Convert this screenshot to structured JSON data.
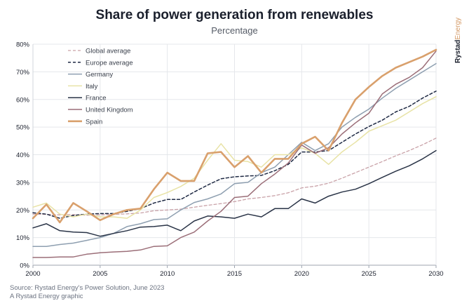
{
  "title": "Share of power generation from renewables",
  "subtitle": "Percentage",
  "source_lines": [
    "Source: Rystad Energy's Power Solution, June 2023",
    "A Rystad Energy graphic"
  ],
  "brand": {
    "part1": "Rystad",
    "part2": "Energy"
  },
  "chart_data": {
    "type": "line",
    "x_ticks": [
      2000,
      2005,
      2010,
      2015,
      2020,
      2025,
      2030
    ],
    "xlim": [
      2000,
      2030
    ],
    "ylim": [
      0,
      80
    ],
    "y_ticks": [
      0,
      10,
      20,
      30,
      40,
      50,
      60,
      70,
      80
    ],
    "y_tick_labels": [
      "0%",
      "10%",
      "20%",
      "30%",
      "40%",
      "50%",
      "60%",
      "70%",
      "80%"
    ],
    "grid": true,
    "legend_position": "top-left",
    "series": [
      {
        "name": "Global average",
        "color": "#c9a2a8",
        "dash": "dashed",
        "width": 1.3,
        "x": [
          2000,
          2001,
          2002,
          2003,
          2004,
          2005,
          2006,
          2007,
          2008,
          2009,
          2010,
          2011,
          2012,
          2013,
          2014,
          2015,
          2016,
          2017,
          2018,
          2019,
          2020,
          2021,
          2022,
          2023,
          2024,
          2025,
          2026,
          2027,
          2028,
          2029,
          2030
        ],
        "y": [
          18.5,
          18.4,
          18.2,
          18.3,
          18.1,
          18.2,
          18.4,
          18.6,
          18.9,
          19.7,
          20.0,
          20.3,
          21.0,
          21.7,
          22.3,
          23.0,
          24.0,
          24.5,
          25.2,
          26.2,
          28.0,
          28.6,
          29.7,
          31.5,
          33.5,
          35.5,
          37.5,
          39.6,
          41.5,
          43.6,
          46.0
        ]
      },
      {
        "name": "Europe average",
        "color": "#1f2a44",
        "dash": "dashed",
        "width": 1.5,
        "x": [
          2000,
          2001,
          2002,
          2003,
          2004,
          2005,
          2006,
          2007,
          2008,
          2009,
          2010,
          2011,
          2012,
          2013,
          2014,
          2015,
          2016,
          2017,
          2018,
          2019,
          2020,
          2021,
          2022,
          2023,
          2024,
          2025,
          2026,
          2027,
          2028,
          2029,
          2030
        ],
        "y": [
          19.0,
          18.5,
          17.0,
          18.0,
          18.5,
          18.7,
          18.7,
          19.5,
          20.5,
          22.5,
          23.8,
          23.8,
          26.5,
          29.0,
          31.3,
          32.0,
          32.3,
          32.5,
          34.2,
          36.5,
          41.0,
          41.0,
          41.5,
          44.5,
          47.5,
          50.2,
          52.5,
          55.5,
          57.5,
          60.5,
          63.0
        ]
      },
      {
        "name": "Germany",
        "color": "#8e9fb0",
        "dash": "solid",
        "width": 1.5,
        "x": [
          2000,
          2001,
          2002,
          2003,
          2004,
          2005,
          2006,
          2007,
          2008,
          2009,
          2010,
          2011,
          2012,
          2013,
          2014,
          2015,
          2016,
          2017,
          2018,
          2019,
          2020,
          2021,
          2022,
          2023,
          2024,
          2025,
          2026,
          2027,
          2028,
          2029,
          2030
        ],
        "y": [
          6.8,
          6.8,
          7.5,
          8.0,
          9.0,
          10.0,
          11.5,
          14.0,
          15.0,
          16.5,
          16.8,
          20.0,
          22.7,
          24.0,
          25.8,
          29.5,
          30.0,
          33.5,
          35.5,
          40.0,
          44.5,
          41.5,
          44.0,
          50.0,
          53.5,
          56.5,
          60.5,
          64.0,
          67.0,
          70.0,
          73.0
        ]
      },
      {
        "name": "Italy",
        "color": "#e8e3a6",
        "dash": "solid",
        "width": 1.5,
        "x": [
          2000,
          2001,
          2002,
          2003,
          2004,
          2005,
          2006,
          2007,
          2008,
          2009,
          2010,
          2011,
          2012,
          2013,
          2014,
          2015,
          2016,
          2017,
          2018,
          2019,
          2020,
          2021,
          2022,
          2023,
          2024,
          2025,
          2026,
          2027,
          2028,
          2029,
          2030
        ],
        "y": [
          21.0,
          22.5,
          18.5,
          17.5,
          18.5,
          17.5,
          17.5,
          17.0,
          20.0,
          24.5,
          26.3,
          28.5,
          31.5,
          38.0,
          44.0,
          38.0,
          37.5,
          35.5,
          40.0,
          40.0,
          42.5,
          40.5,
          36.5,
          41.0,
          44.5,
          48.5,
          50.5,
          52.5,
          55.5,
          58.5,
          61.0
        ]
      },
      {
        "name": "France",
        "color": "#2a3447",
        "dash": "solid",
        "width": 1.5,
        "x": [
          2000,
          2001,
          2002,
          2003,
          2004,
          2005,
          2006,
          2007,
          2008,
          2009,
          2010,
          2011,
          2012,
          2013,
          2014,
          2015,
          2016,
          2017,
          2018,
          2019,
          2020,
          2021,
          2022,
          2023,
          2024,
          2025,
          2026,
          2027,
          2028,
          2029,
          2030
        ],
        "y": [
          13.5,
          15.0,
          12.5,
          12.0,
          11.8,
          10.5,
          11.5,
          12.5,
          13.8,
          14.0,
          14.5,
          12.5,
          16.0,
          17.8,
          17.5,
          17.0,
          18.5,
          17.5,
          20.5,
          20.5,
          24.0,
          22.5,
          25.0,
          26.5,
          27.5,
          29.5,
          31.8,
          34.0,
          36.0,
          38.5,
          41.5
        ]
      },
      {
        "name": "United Kingdom",
        "color": "#9b6e78",
        "dash": "solid",
        "width": 1.5,
        "x": [
          2000,
          2001,
          2002,
          2003,
          2004,
          2005,
          2006,
          2007,
          2008,
          2009,
          2010,
          2011,
          2012,
          2013,
          2014,
          2015,
          2016,
          2017,
          2018,
          2019,
          2020,
          2021,
          2022,
          2023,
          2024,
          2025,
          2026,
          2027,
          2028,
          2029,
          2030
        ],
        "y": [
          2.8,
          2.8,
          3.0,
          3.0,
          4.0,
          4.5,
          4.8,
          5.0,
          5.5,
          6.8,
          7.0,
          10.0,
          12.0,
          16.0,
          19.5,
          24.5,
          25.0,
          29.5,
          33.0,
          37.0,
          43.5,
          40.5,
          42.5,
          47.5,
          51.5,
          55.0,
          62.0,
          65.5,
          68.0,
          71.5,
          77.5
        ]
      },
      {
        "name": "Spain",
        "color": "#d9a06c",
        "dash": "solid",
        "width": 2.6,
        "x": [
          2000,
          2001,
          2002,
          2003,
          2004,
          2005,
          2006,
          2007,
          2008,
          2009,
          2010,
          2011,
          2012,
          2013,
          2014,
          2015,
          2016,
          2017,
          2018,
          2019,
          2020,
          2021,
          2022,
          2023,
          2024,
          2025,
          2026,
          2027,
          2028,
          2029,
          2030
        ],
        "y": [
          17.0,
          22.0,
          15.5,
          22.5,
          19.5,
          16.3,
          18.5,
          20.0,
          20.5,
          27.5,
          33.5,
          30.5,
          30.5,
          40.5,
          41.0,
          35.5,
          39.5,
          33.5,
          38.5,
          38.5,
          44.0,
          46.5,
          41.5,
          51.5,
          60.0,
          64.5,
          68.5,
          71.5,
          73.5,
          75.5,
          78.0
        ]
      }
    ]
  }
}
